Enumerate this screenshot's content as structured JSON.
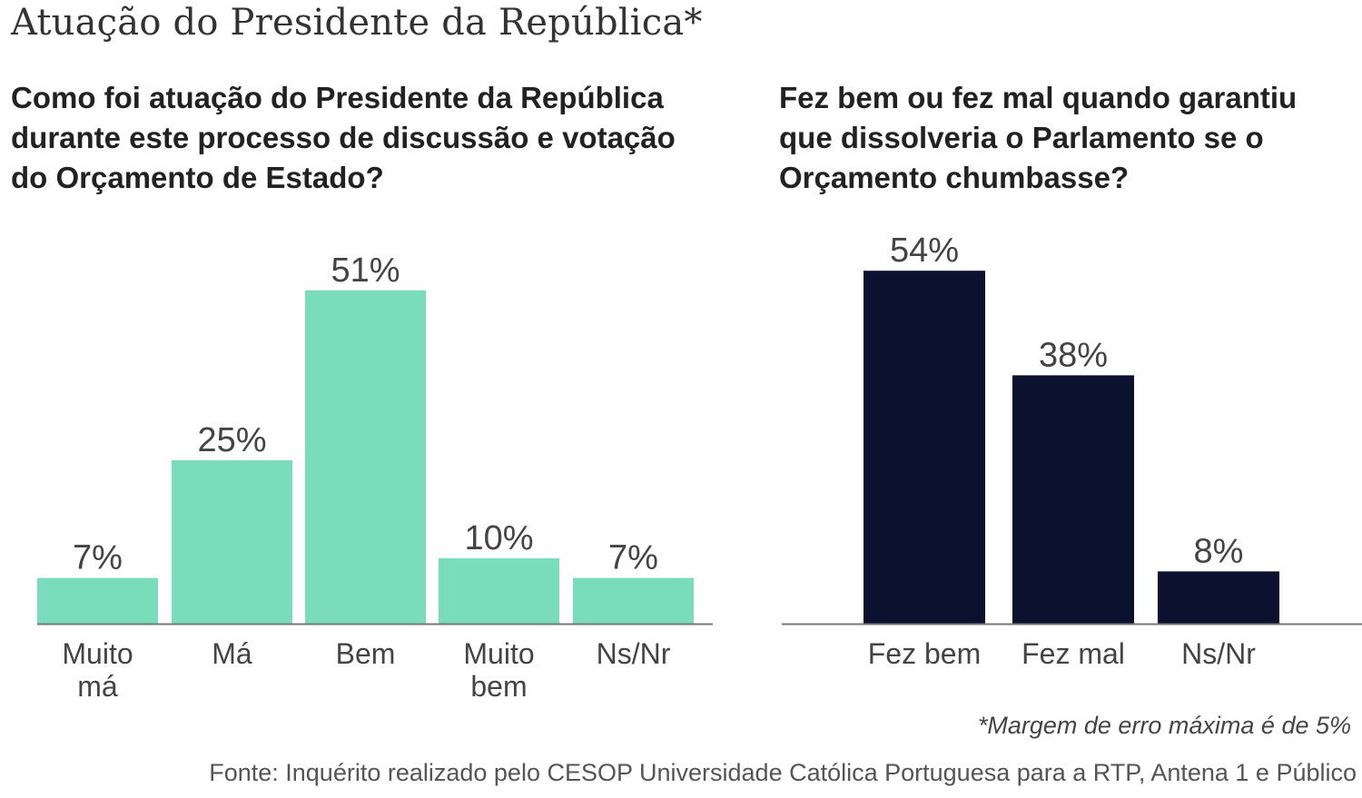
{
  "title": "Atuação do Presidente da República*",
  "chart_data": [
    {
      "type": "bar",
      "title": "Como foi atuação do Presidente da República\ndurante este processo de discussão e votação\ndo Orçamento de Estado?",
      "categories": [
        [
          "Muito",
          "má"
        ],
        [
          "Má"
        ],
        [
          "Bem"
        ],
        [
          "Muito",
          "bem"
        ],
        [
          "Ns/Nr"
        ]
      ],
      "values": [
        7,
        25,
        51,
        10,
        7
      ],
      "value_labels": [
        "7%",
        "25%",
        "51%",
        "10%",
        "7%"
      ],
      "unit": "%",
      "color": "#79dcbb",
      "xlabel": "",
      "ylabel": "",
      "ylim": [
        0,
        60
      ],
      "grid": false
    },
    {
      "type": "bar",
      "title": "Fez bem ou fez mal quando garantiu\nque dissolveria o Parlamento se o\nOrçamento chumbasse?",
      "categories": [
        [
          "Fez bem"
        ],
        [
          "Fez mal"
        ],
        [
          "Ns/Nr"
        ]
      ],
      "values": [
        54,
        38,
        8
      ],
      "value_labels": [
        "54%",
        "38%",
        "8%"
      ],
      "unit": "%",
      "color": "#0c1130",
      "xlabel": "",
      "ylabel": "",
      "ylim": [
        0,
        60
      ],
      "grid": false
    }
  ],
  "note": "*Margem de erro máxima é de 5%",
  "source": "Fonte: Inquérito realizado pelo CESOP Universidade Católica Portuguesa para a RTP, Antena 1 e Público"
}
